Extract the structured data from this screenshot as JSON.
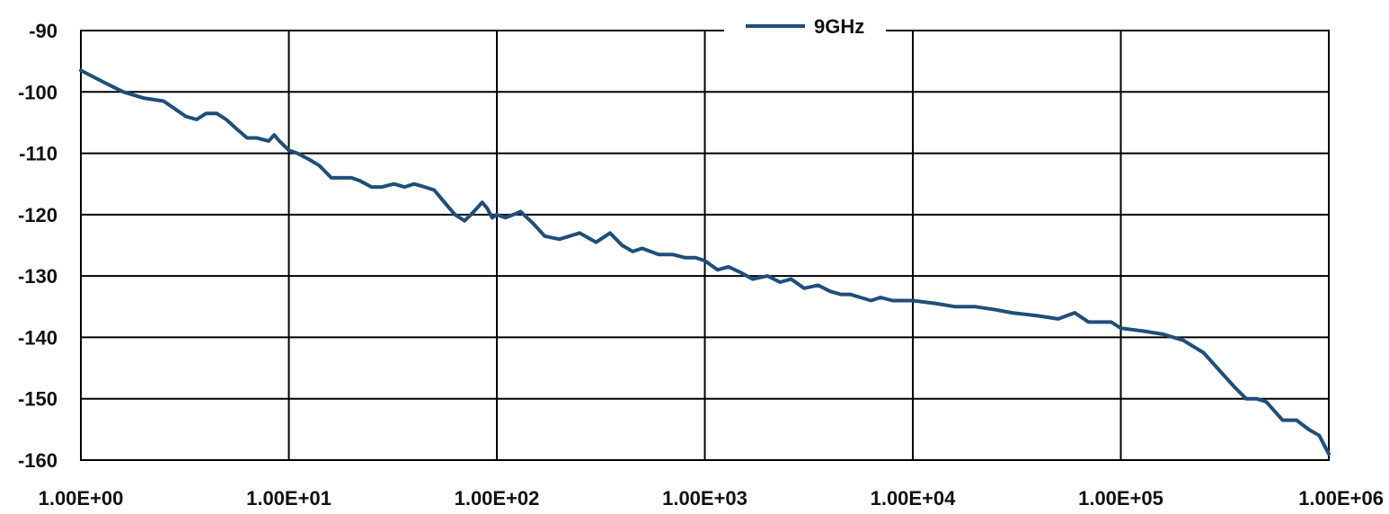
{
  "chart_data": {
    "type": "line",
    "title": "",
    "xlabel": "",
    "ylabel": "",
    "x_scale": "log",
    "xlim": [
      1,
      1000000
    ],
    "ylim": [
      -160,
      -90
    ],
    "grid": true,
    "legend_placement": "top-center",
    "x_tick_values": [
      1,
      10,
      100,
      1000,
      10000,
      100000,
      1000000
    ],
    "x_tick_labels": [
      "1.00E+00",
      "1.00E+01",
      "1.00E+02",
      "1.00E+03",
      "1.00E+04",
      "1.00E+05",
      "1.00E+06"
    ],
    "y_tick_values": [
      -90,
      -100,
      -110,
      -120,
      -130,
      -140,
      -150,
      -160
    ],
    "y_tick_labels": [
      "-90",
      "-100",
      "-110",
      "-120",
      "-130",
      "-140",
      "-150",
      "-160"
    ],
    "series": [
      {
        "name": "9GHz",
        "color": "#1f4e79",
        "x": [
          1,
          1.3,
          1.6,
          2,
          2.5,
          3.2,
          3.6,
          4,
          4.5,
          5,
          5.6,
          6.3,
          7,
          8,
          8.5,
          9,
          10,
          11,
          12.5,
          14,
          16,
          18,
          20,
          22,
          25,
          28,
          32,
          36,
          40,
          45,
          50,
          56,
          63,
          70,
          75,
          80,
          85,
          90,
          95,
          100,
          110,
          120,
          130,
          150,
          170,
          200,
          250,
          300,
          350,
          400,
          450,
          500,
          600,
          700,
          800,
          900,
          1000,
          1150,
          1300,
          1500,
          1700,
          2000,
          2300,
          2600,
          3000,
          3500,
          4000,
          4500,
          5000,
          5600,
          6300,
          7000,
          8000,
          10000,
          13000,
          16000,
          20000,
          25000,
          30000,
          40000,
          50000,
          60000,
          70000,
          80000,
          90000,
          100000,
          130000,
          160000,
          200000,
          250000,
          300000,
          350000,
          400000,
          450000,
          500000,
          600000,
          700000,
          800000,
          900000,
          1000000
        ],
        "y": [
          -96.5,
          -98.5,
          -100,
          -101,
          -101.5,
          -104,
          -104.5,
          -103.5,
          -103.5,
          -104.5,
          -106,
          -107.5,
          -107.5,
          -108,
          -107,
          -108,
          -109.5,
          -110,
          -111,
          -112,
          -114,
          -114,
          -114,
          -114.5,
          -115.5,
          -115.5,
          -115,
          -115.5,
          -115,
          -115.5,
          -116,
          -118,
          -120,
          -121,
          -120,
          -119,
          -118,
          -119,
          -120.5,
          -120,
          -120.5,
          -120,
          -119.5,
          -121.5,
          -123.5,
          -124,
          -123,
          -124.5,
          -123,
          -125,
          -126,
          -125.5,
          -126.5,
          -126.5,
          -127,
          -127,
          -127.5,
          -129,
          -128.5,
          -129.5,
          -130.5,
          -130,
          -131,
          -130.5,
          -132,
          -131.5,
          -132.5,
          -133,
          -133,
          -133.5,
          -134,
          -133.5,
          -134,
          -134,
          -134.5,
          -135,
          -135,
          -135.5,
          -136,
          -136.5,
          -137,
          -136,
          -137.5,
          -137.5,
          -137.5,
          -138.5,
          -139,
          -139.5,
          -140.5,
          -142.5,
          -145.5,
          -148,
          -150,
          -150,
          -150.5,
          -153.5,
          -153.5,
          -155,
          -156,
          -159
        ]
      }
    ]
  }
}
